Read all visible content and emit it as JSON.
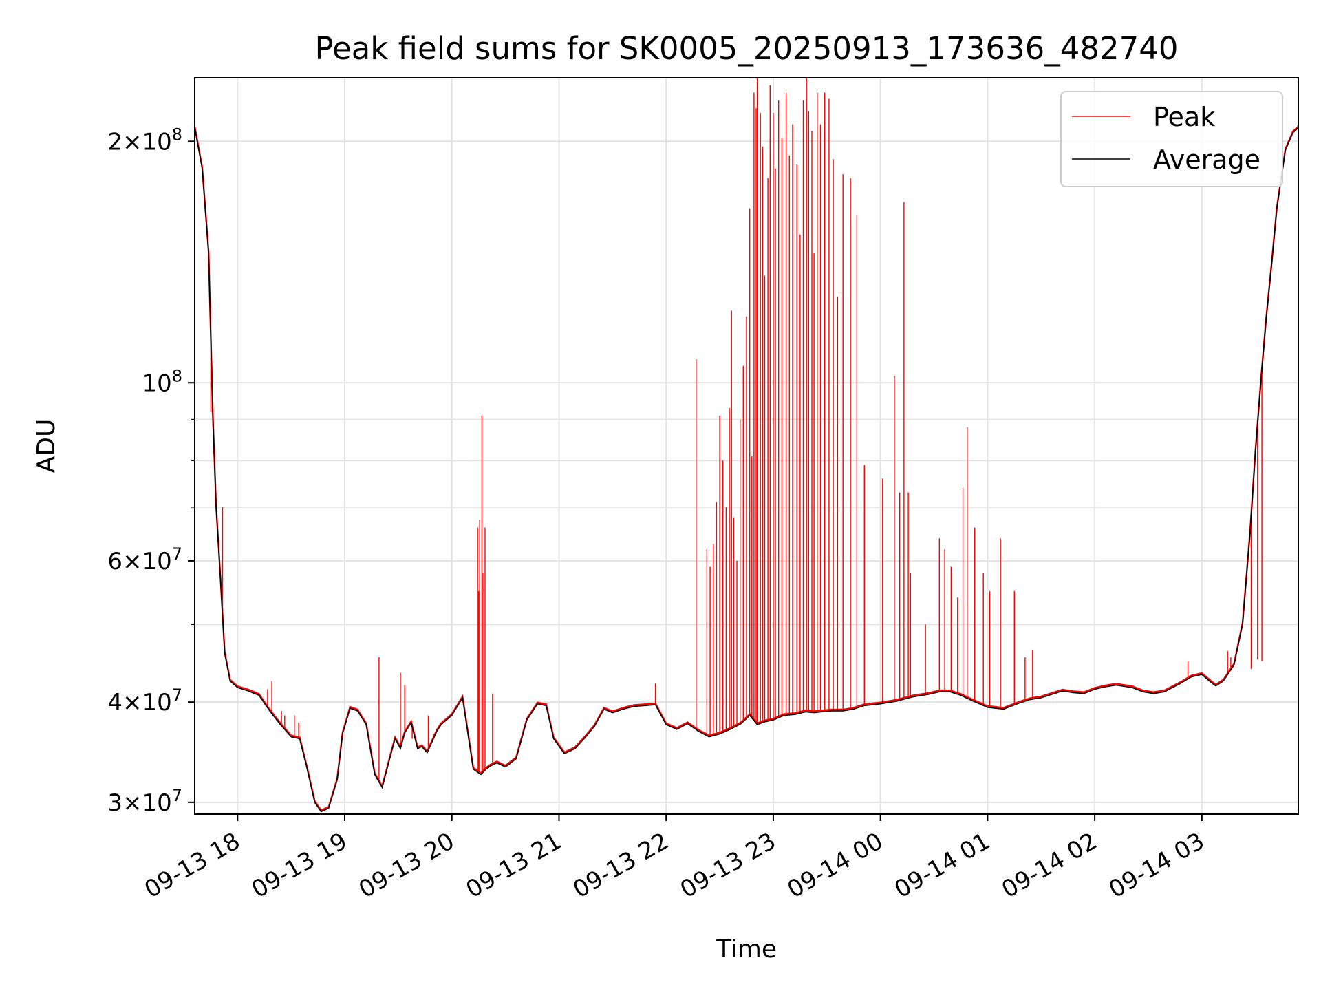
{
  "chart_data": {
    "type": "line",
    "title": "Peak field sums for SK0005_20250913_173636_482740",
    "xlabel": "Time",
    "ylabel": "ADU",
    "yscale": "log",
    "ylim": [
      29000000,
      240000000
    ],
    "xlim_hours": [
      17.6,
      27.9
    ],
    "grid": true,
    "legend_position": "top-right",
    "x_ticks": [
      {
        "hour": 18,
        "label": "09-13 18"
      },
      {
        "hour": 19,
        "label": "09-13 19"
      },
      {
        "hour": 20,
        "label": "09-13 20"
      },
      {
        "hour": 21,
        "label": "09-13 21"
      },
      {
        "hour": 22,
        "label": "09-13 22"
      },
      {
        "hour": 23,
        "label": "09-13 23"
      },
      {
        "hour": 24,
        "label": "09-14 00"
      },
      {
        "hour": 25,
        "label": "09-14 01"
      },
      {
        "hour": 26,
        "label": "09-14 02"
      },
      {
        "hour": 27,
        "label": "09-14 03"
      }
    ],
    "y_ticks": [
      {
        "value": 30000000,
        "mant": "3",
        "exp": "7"
      },
      {
        "value": 40000000,
        "mant": "4",
        "exp": "7"
      },
      {
        "value": 60000000,
        "mant": "6",
        "exp": "7"
      },
      {
        "value": 100000000,
        "mant": "",
        "exp": "8"
      },
      {
        "value": 200000000,
        "mant": "2",
        "exp": "8"
      }
    ],
    "y_minor_ticks": [
      50000000,
      70000000,
      80000000,
      90000000
    ],
    "series": [
      {
        "name": "Average",
        "color": "#000000",
        "x": [
          17.6,
          17.67,
          17.73,
          17.77,
          17.8,
          17.84,
          17.88,
          17.93,
          18.0,
          18.1,
          18.2,
          18.3,
          18.4,
          18.5,
          18.58,
          18.65,
          18.72,
          18.78,
          18.85,
          18.93,
          18.98,
          19.05,
          19.12,
          19.2,
          19.28,
          19.35,
          19.42,
          19.47,
          19.52,
          19.56,
          19.62,
          19.68,
          19.72,
          19.77,
          19.82,
          19.86,
          19.9,
          19.95,
          20.0,
          20.1,
          20.2,
          20.27,
          20.32,
          20.36,
          20.42,
          20.5,
          20.6,
          20.7,
          20.8,
          20.88,
          20.95,
          21.05,
          21.15,
          21.25,
          21.33,
          21.42,
          21.5,
          21.6,
          21.7,
          21.8,
          21.9,
          22.0,
          22.1,
          22.2,
          22.3,
          22.4,
          22.5,
          22.6,
          22.7,
          22.78,
          22.85,
          22.92,
          23.0,
          23.1,
          23.2,
          23.3,
          23.38,
          23.45,
          23.55,
          23.65,
          23.75,
          23.85,
          24.0,
          24.15,
          24.3,
          24.45,
          24.55,
          24.65,
          24.75,
          24.85,
          25.0,
          25.15,
          25.3,
          25.4,
          25.5,
          25.6,
          25.7,
          25.8,
          25.9,
          26.0,
          26.1,
          26.2,
          26.35,
          26.45,
          26.55,
          26.65,
          26.8,
          26.9,
          27.0,
          27.08,
          27.13,
          27.2,
          27.3,
          27.38,
          27.45,
          27.5,
          27.55,
          27.6,
          27.65,
          27.7,
          27.78,
          27.85,
          27.9
        ],
        "values": [
          208000000,
          185000000,
          145000000,
          90000000,
          70000000,
          57000000,
          46000000,
          42500000,
          41700000,
          41300000,
          40800000,
          39000000,
          37500000,
          36200000,
          36000000,
          33000000,
          30000000,
          29200000,
          29500000,
          32000000,
          36500000,
          39300000,
          39000000,
          37500000,
          32500000,
          31300000,
          34000000,
          36000000,
          35000000,
          36600000,
          37700000,
          35000000,
          35200000,
          34600000,
          35800000,
          36800000,
          37500000,
          38000000,
          38500000,
          40500000,
          33000000,
          32500000,
          33000000,
          33300000,
          33600000,
          33200000,
          34000000,
          38000000,
          39800000,
          39600000,
          36000000,
          34500000,
          35000000,
          36200000,
          37300000,
          39200000,
          38800000,
          39200000,
          39500000,
          39600000,
          39700000,
          37500000,
          37000000,
          37600000,
          36800000,
          36200000,
          36500000,
          37000000,
          37600000,
          38500000,
          37500000,
          37800000,
          38000000,
          38500000,
          38600000,
          38900000,
          38800000,
          38900000,
          39000000,
          39000000,
          39200000,
          39600000,
          39800000,
          40100000,
          40600000,
          40900000,
          41200000,
          41200000,
          40800000,
          40200000,
          39400000,
          39200000,
          39900000,
          40300000,
          40500000,
          40900000,
          41300000,
          41100000,
          41000000,
          41500000,
          41800000,
          42000000,
          41700000,
          41200000,
          41000000,
          41200000,
          42200000,
          43000000,
          43300000,
          42400000,
          41900000,
          42500000,
          44500000,
          50000000,
          65000000,
          82000000,
          100000000,
          120000000,
          140000000,
          165000000,
          195000000,
          205000000,
          208000000
        ]
      },
      {
        "name": "Peak",
        "color": "#ff0000",
        "x": [
          17.75,
          17.77,
          17.86,
          18.28,
          18.32,
          18.41,
          18.44,
          18.53,
          18.57,
          19.32,
          19.52,
          19.56,
          19.63,
          19.78,
          19.83,
          20.24,
          20.25,
          20.26,
          20.28,
          20.29,
          20.31,
          20.38,
          21.9,
          22.28,
          22.38,
          22.41,
          22.44,
          22.47,
          22.5,
          22.53,
          22.56,
          22.59,
          22.61,
          22.63,
          22.66,
          22.69,
          22.72,
          22.75,
          22.78,
          22.8,
          22.82,
          22.84,
          22.85,
          22.88,
          22.9,
          22.92,
          22.95,
          22.97,
          23.0,
          23.02,
          23.05,
          23.08,
          23.12,
          23.15,
          23.18,
          23.22,
          23.25,
          23.28,
          23.31,
          23.33,
          23.36,
          23.38,
          23.41,
          23.44,
          23.48,
          23.52,
          23.56,
          23.6,
          23.65,
          23.72,
          23.78,
          23.85,
          24.02,
          24.13,
          24.18,
          24.22,
          24.26,
          24.28,
          24.42,
          24.55,
          24.6,
          24.66,
          24.72,
          24.77,
          24.81,
          24.88,
          24.96,
          25.02,
          25.12,
          25.25,
          25.35,
          25.42,
          26.87,
          27.24,
          27.27,
          27.34,
          27.46,
          27.52,
          27.56
        ],
        "values": [
          92000000,
          88000000,
          70000000,
          41500000,
          42500000,
          39000000,
          38500000,
          38500000,
          37700000,
          45500000,
          43500000,
          42000000,
          36000000,
          38500000,
          36500000,
          66000000,
          55000000,
          67500000,
          91000000,
          58000000,
          66000000,
          41000000,
          42200000,
          107000000,
          62000000,
          59000000,
          63000000,
          71000000,
          91000000,
          80000000,
          70000000,
          93000000,
          123000000,
          68000000,
          60000000,
          90000000,
          105000000,
          121000000,
          165000000,
          81000000,
          230000000,
          220000000,
          240000000,
          217000000,
          197000000,
          136000000,
          180000000,
          235000000,
          217000000,
          185000000,
          225000000,
          202000000,
          230000000,
          192000000,
          210000000,
          187000000,
          153000000,
          225000000,
          240000000,
          218000000,
          206000000,
          145000000,
          230000000,
          210000000,
          230000000,
          226000000,
          190000000,
          128000000,
          182000000,
          180000000,
          162000000,
          79000000,
          76000000,
          102000000,
          73000000,
          168000000,
          73000000,
          58000000,
          50000000,
          64000000,
          62000000,
          59000000,
          54000000,
          74000000,
          88000000,
          66000000,
          58000000,
          55000000,
          64000000,
          55000000,
          45500000,
          46500000,
          45000000,
          46300000,
          45500000,
          47000000,
          44000000,
          45200000,
          45000000
        ]
      }
    ]
  }
}
